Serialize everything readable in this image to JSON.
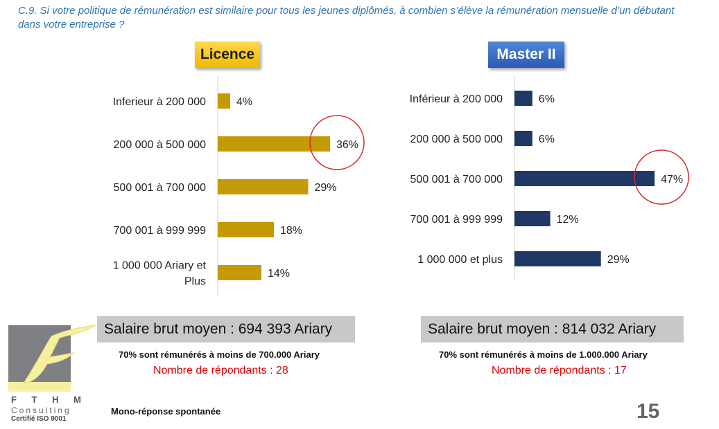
{
  "question": "C.9. Si votre politique de rémunération est similaire pour tous les jeunes diplômés, à combien s’élève la rémunération mensuelle d’un débutant dans votre entreprise ?",
  "chart_data": [
    {
      "type": "bar",
      "orientation": "horizontal",
      "title": "Licence",
      "categories": [
        "Inferieur à 200 000",
        "200 000 à 500 000",
        "500 001 à 700 000",
        "700 001 à 999 999",
        "1 000 000 Ariary et Plus"
      ],
      "values": [
        4,
        36,
        29,
        18,
        14
      ],
      "value_labels": [
        "4%",
        "36%",
        "29%",
        "18%",
        "14%"
      ],
      "unit": "%",
      "color": "#c49a06",
      "highlight_index": 1,
      "highlight_color": "#d62728"
    },
    {
      "type": "bar",
      "orientation": "horizontal",
      "title": "Master II",
      "categories": [
        "Inférieur à 200 000",
        "200 000 à 500 000",
        "500 001 à 700 000",
        "700 001 à 999 999",
        "1 000 000 et plus"
      ],
      "values": [
        6,
        6,
        47,
        12,
        29
      ],
      "value_labels": [
        "6%",
        "6%",
        "47%",
        "12%",
        "29%"
      ],
      "unit": "%",
      "color": "#203864",
      "highlight_index": 2,
      "highlight_color": "#d62728"
    }
  ],
  "left": {
    "salary": "Salaire brut moyen : 694 393 Ariary",
    "note": "70% sont rémunérés à moins de 700.000 Ariary",
    "respondents": "Nombre de répondants : 28"
  },
  "right": {
    "salary": "Salaire brut moyen :  814 032 Ariary",
    "note": "70% sont rémunérés à moins de 1.000.000 Ariary",
    "respondents": "Nombre de répondants : 17"
  },
  "logo": {
    "letter": "F",
    "name": "F T H M",
    "sub": "Consulting",
    "cert": "Certifié ISO 9001"
  },
  "footer": "Mono-réponse spontanée",
  "page_number": "15"
}
